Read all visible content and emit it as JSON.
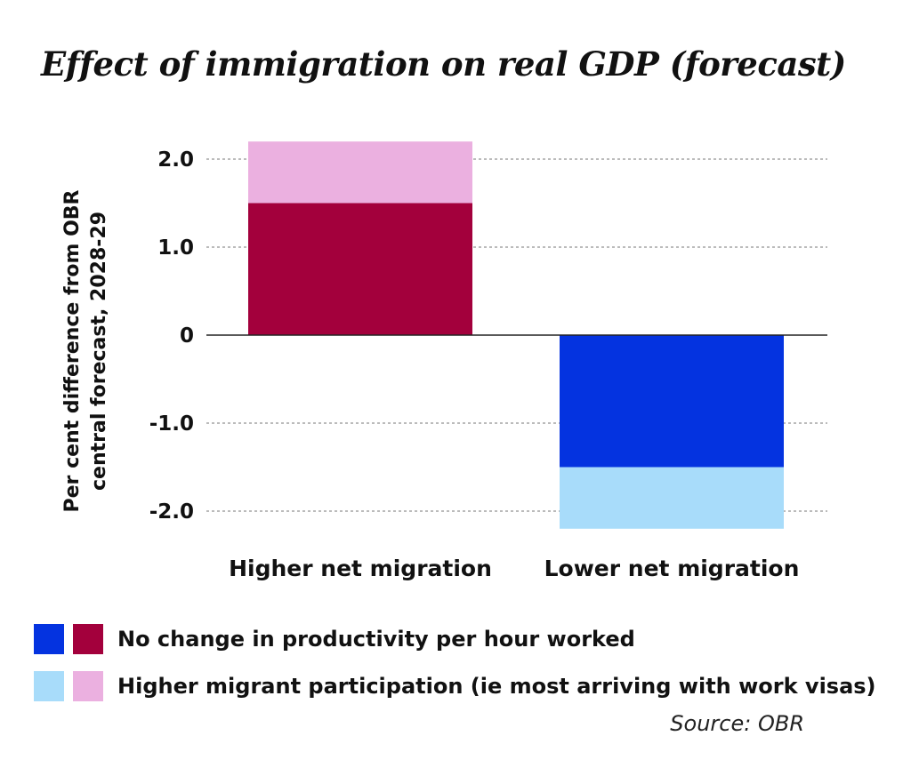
{
  "colors": {
    "higher_base": "#a3003c",
    "higher_extra": "#ebb0e0",
    "lower_base": "#0433e0",
    "lower_extra": "#a8dcfa"
  },
  "chart_data": {
    "type": "bar",
    "stacked": true,
    "title": "Effect of immigration on real GDP (forecast)",
    "ylabel": "Per cent difference from OBR central forecast, 2028-29",
    "ylabel_lines": [
      "Per cent difference from OBR",
      "central forecast, 2028-29"
    ],
    "categories": [
      "Higher net migration",
      "Lower net migration"
    ],
    "series": [
      {
        "name": "No change in productivity per hour worked",
        "values": [
          1.5,
          -1.5
        ]
      },
      {
        "name": "Higher migrant participation (ie most arriving with work visas)",
        "values": [
          0.7,
          -0.7
        ]
      }
    ],
    "yticks": [
      2.0,
      1.0,
      0,
      -1.0,
      -2.0
    ],
    "ytick_labels": [
      "2.0",
      "1.0",
      "0",
      "-1.0",
      "-2.0"
    ],
    "ylim": [
      -2.2,
      2.2
    ],
    "grid": true,
    "legend_position": "bottom-left",
    "source": "Source: OBR"
  }
}
